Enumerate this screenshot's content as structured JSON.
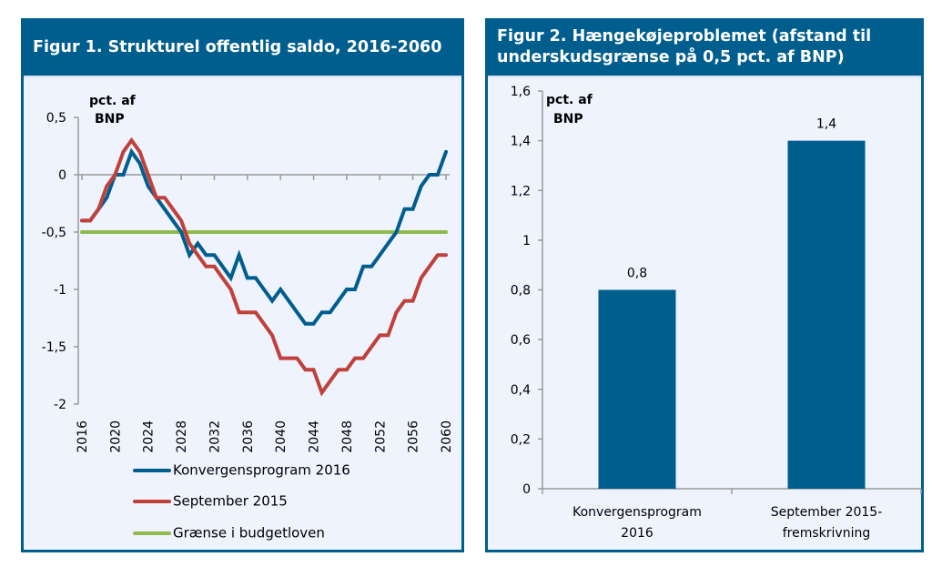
{
  "colors": {
    "panel_border": "#005e8e",
    "panel_bg": "#eef3fd",
    "blue_series": "#005e8e",
    "red_series": "#c0403a",
    "green_series": "#8fba4c",
    "bar": "#005e8e"
  },
  "figure1": {
    "title": "Figur 1. Strukturel offentlig saldo, 2016-2060",
    "unit_line1": "pct. af",
    "unit_line2": "BNP"
  },
  "figure2": {
    "title_line1": "Figur 2. Hængekøjeproblemet (afstand til",
    "title_line2": "underskudsgrænse på 0,5 pct. af BNP)",
    "unit_line1": "pct. af",
    "unit_line2": "BNP"
  },
  "chart_data": [
    {
      "type": "line",
      "title": "Figur 1. Strukturel offentlig saldo, 2016-2060",
      "ylabel": "pct. af BNP",
      "xlabel": "",
      "ylim": [
        -2,
        0.5
      ],
      "yticks": [
        0.5,
        0,
        -0.5,
        -1,
        -1.5,
        -2
      ],
      "ytick_labels": [
        "0,5",
        "0",
        "-0,5",
        "-1",
        "-1,5",
        "-2"
      ],
      "xticks": [
        2016,
        2020,
        2024,
        2028,
        2032,
        2036,
        2040,
        2044,
        2048,
        2052,
        2056,
        2060
      ],
      "xtick_labels": [
        "2016",
        "2020",
        "2024",
        "2028",
        "2032",
        "2036",
        "2040",
        "2044",
        "2048",
        "2052",
        "2056",
        "2060"
      ],
      "xtick_rotation": "vertical",
      "grid": false,
      "legend_position": "bottom",
      "x": [
        2016,
        2017,
        2018,
        2019,
        2020,
        2021,
        2022,
        2023,
        2024,
        2025,
        2026,
        2027,
        2028,
        2029,
        2030,
        2031,
        2032,
        2033,
        2034,
        2035,
        2036,
        2037,
        2038,
        2039,
        2040,
        2041,
        2042,
        2043,
        2044,
        2045,
        2046,
        2047,
        2048,
        2049,
        2050,
        2051,
        2052,
        2053,
        2054,
        2055,
        2056,
        2057,
        2058,
        2059,
        2060
      ],
      "series": [
        {
          "name": "Konvergensprogram 2016",
          "color": "#005e8e",
          "values": [
            -0.4,
            -0.4,
            -0.3,
            -0.2,
            0,
            0,
            0.2,
            0.1,
            -0.1,
            -0.2,
            -0.3,
            -0.4,
            -0.5,
            -0.7,
            -0.6,
            -0.7,
            -0.7,
            -0.8,
            -0.9,
            -0.7,
            -0.9,
            -0.9,
            -1.0,
            -1.1,
            -1.0,
            -1.1,
            -1.2,
            -1.3,
            -1.3,
            -1.2,
            -1.2,
            -1.1,
            -1.0,
            -1.0,
            -0.8,
            -0.8,
            -0.7,
            -0.6,
            -0.5,
            -0.3,
            -0.3,
            -0.1,
            0,
            0,
            0.2
          ]
        },
        {
          "name": "September 2015",
          "color": "#c0403a",
          "values": [
            -0.4,
            -0.4,
            -0.3,
            -0.1,
            0,
            0.2,
            0.3,
            0.2,
            0,
            -0.2,
            -0.2,
            -0.3,
            -0.4,
            -0.6,
            -0.7,
            -0.8,
            -0.8,
            -0.9,
            -1.0,
            -1.2,
            -1.2,
            -1.2,
            -1.3,
            -1.4,
            -1.6,
            -1.6,
            -1.6,
            -1.7,
            -1.7,
            -1.9,
            -1.8,
            -1.7,
            -1.7,
            -1.6,
            -1.6,
            -1.5,
            -1.4,
            -1.4,
            -1.2,
            -1.1,
            -1.1,
            -0.9,
            -0.8,
            -0.7,
            -0.7
          ]
        },
        {
          "name": "Grænse i budgetloven",
          "color": "#8fba4c",
          "values": [
            -0.5,
            -0.5,
            -0.5,
            -0.5,
            -0.5,
            -0.5,
            -0.5,
            -0.5,
            -0.5,
            -0.5,
            -0.5,
            -0.5,
            -0.5,
            -0.5,
            -0.5,
            -0.5,
            -0.5,
            -0.5,
            -0.5,
            -0.5,
            -0.5,
            -0.5,
            -0.5,
            -0.5,
            -0.5,
            -0.5,
            -0.5,
            -0.5,
            -0.5,
            -0.5,
            -0.5,
            -0.5,
            -0.5,
            -0.5,
            -0.5,
            -0.5,
            -0.5,
            -0.5,
            -0.5,
            -0.5,
            -0.5,
            -0.5,
            -0.5,
            -0.5,
            -0.5
          ]
        }
      ]
    },
    {
      "type": "bar",
      "title": "Figur 2. Hængekøjeproblemet (afstand til underskudsgrænse på 0,5 pct. af BNP)",
      "ylabel": "pct. af BNP",
      "xlabel": "",
      "ylim": [
        0,
        1.6
      ],
      "yticks": [
        0,
        0.2,
        0.4,
        0.6,
        0.8,
        1,
        1.2,
        1.4,
        1.6
      ],
      "ytick_labels": [
        "0",
        "0,2",
        "0,4",
        "0,6",
        "0,8",
        "1",
        "1,2",
        "1,4",
        "1,6"
      ],
      "categories": [
        {
          "line1": "Konvergensprogram",
          "line2": "2016"
        },
        {
          "line1": "September 2015-",
          "line2": "fremskrivning"
        }
      ],
      "values": [
        0.8,
        1.4
      ],
      "data_labels": [
        "0,8",
        "1,4"
      ],
      "grid": false,
      "legend_position": "none"
    }
  ]
}
